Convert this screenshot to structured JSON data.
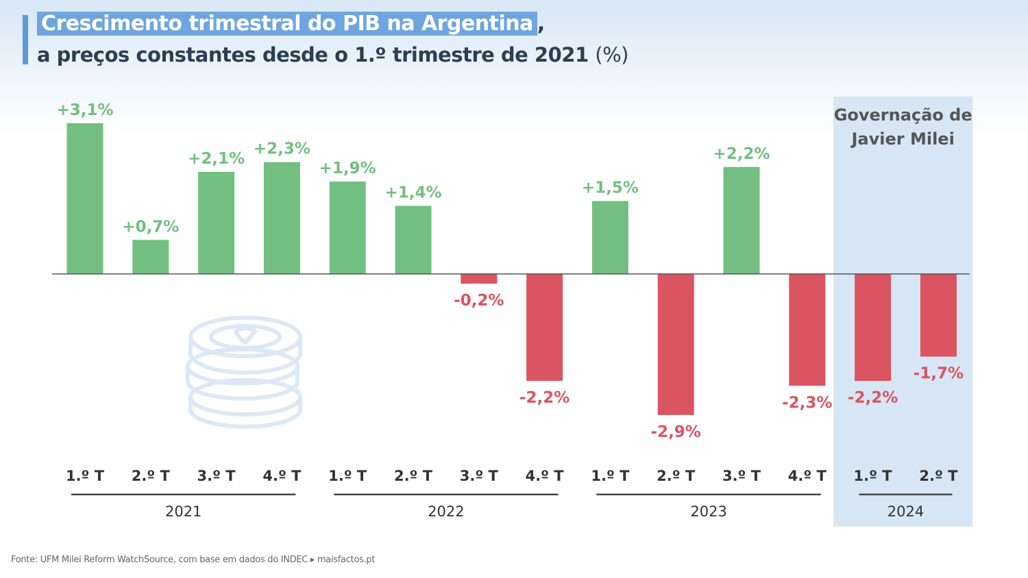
{
  "title": {
    "main": "Crescimento trimestral do PIB na Argentina",
    "comma": ",",
    "subtitle": "a preços constantes desde o 1.º trimestre de 2021",
    "unit": "(%)"
  },
  "source": "Fonte: UFM Milei Reform WatchSource, com base em dados do INDEC ▸ maisfactos.pt",
  "colors": {
    "positive": "#73bf82",
    "negative": "#db5461",
    "highlight": "#d6e6f5",
    "axis": "#555555",
    "text": "#333333"
  },
  "chart_data": {
    "type": "bar",
    "categories": [
      "1.º T",
      "2.º T",
      "3.º T",
      "4.º T",
      "1.º T",
      "2.º T",
      "3.º T",
      "4.º T",
      "1.º T",
      "2.º T",
      "3.º T",
      "4.º T",
      "1.º T",
      "2.º T"
    ],
    "values": [
      3.1,
      0.7,
      2.1,
      2.3,
      1.9,
      1.4,
      -0.2,
      -2.2,
      1.5,
      -2.9,
      2.2,
      -2.3,
      -2.2,
      -1.7
    ],
    "data_labels": [
      "+3,1%",
      "+0,7%",
      "+2,1%",
      "+2,3%",
      "+1,9%",
      "+1,4%",
      "-0,2%",
      "-2,2%",
      "+1,5%",
      "-2,9%",
      "+2,2%",
      "-2,3%",
      "-2,2%",
      "-1,7%"
    ],
    "groups": [
      {
        "label": "2021",
        "start": 0,
        "end": 3
      },
      {
        "label": "2022",
        "start": 4,
        "end": 7
      },
      {
        "label": "2023",
        "start": 8,
        "end": 11
      },
      {
        "label": "2024",
        "start": 12,
        "end": 13
      }
    ],
    "highlight": {
      "label": "Governação de Javier Milei",
      "start": 12,
      "end": 13
    },
    "ylim": [
      -3.1,
      3.5
    ],
    "grid": false,
    "legend": "none"
  }
}
